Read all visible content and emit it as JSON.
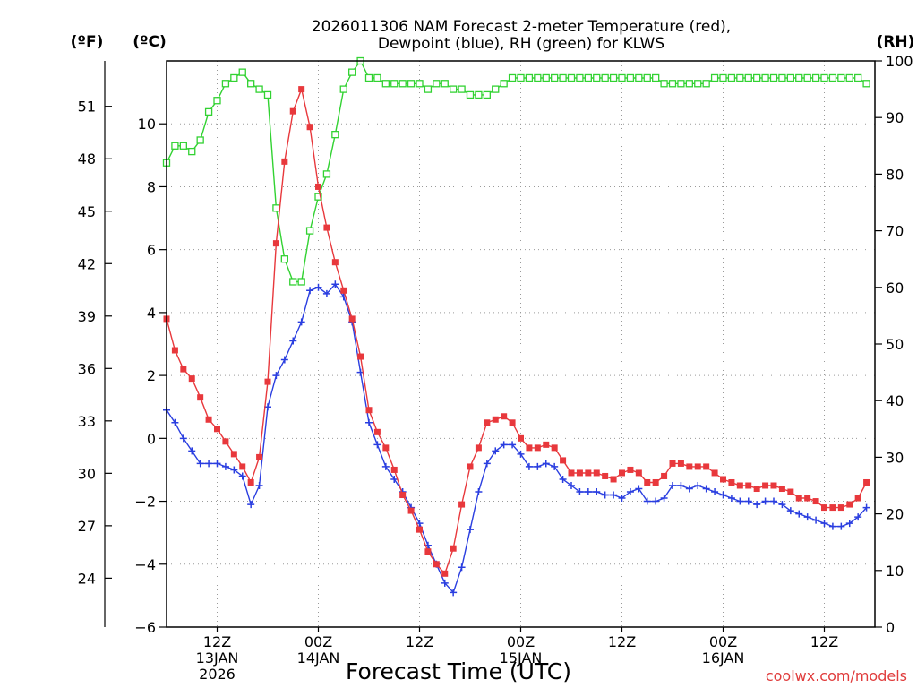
{
  "chart_data": {
    "type": "line",
    "title_lines": [
      "2026011306 NAM Forecast 2-meter Temperature (red),",
      "Dewpoint (blue), RH (green) for KLWS"
    ],
    "xlabel": "Forecast Time (UTC)",
    "credit": "coolwx.com/models",
    "units": {
      "fahrenheit": "(ºF)",
      "celsius": "(ºC)",
      "rh": "(RH)"
    },
    "x_hours_range": [
      0,
      84
    ],
    "x_ticks": [
      {
        "h": 6,
        "lines": [
          "12Z",
          "13JAN",
          "2026"
        ]
      },
      {
        "h": 18,
        "lines": [
          "00Z",
          "14JAN"
        ]
      },
      {
        "h": 30,
        "lines": [
          "12Z"
        ]
      },
      {
        "h": 42,
        "lines": [
          "00Z",
          "15JAN"
        ]
      },
      {
        "h": 54,
        "lines": [
          "12Z"
        ]
      },
      {
        "h": 66,
        "lines": [
          "00Z",
          "16JAN"
        ]
      },
      {
        "h": 78,
        "lines": [
          "12Z"
        ]
      }
    ],
    "y_celsius": {
      "range": [
        -6,
        12
      ],
      "ticks": [
        -6,
        -4,
        -2,
        0,
        2,
        4,
        6,
        8,
        10
      ],
      "tick_labels": [
        "−6",
        "−4",
        "−2",
        "0",
        "2",
        "4",
        "6",
        "8",
        "10"
      ]
    },
    "y_fahrenheit": {
      "ticks": [
        24,
        27,
        30,
        33,
        36,
        39,
        42,
        45,
        48,
        51
      ]
    },
    "y_rh": {
      "range": [
        0,
        100
      ],
      "ticks": [
        0,
        10,
        20,
        30,
        40,
        50,
        60,
        70,
        80,
        90,
        100
      ]
    },
    "series": [
      {
        "name": "Temperature",
        "axis": "celsius",
        "color": "#e8383c",
        "marker": "filled-square",
        "values": [
          3.8,
          2.8,
          2.2,
          1.9,
          1.3,
          0.6,
          0.3,
          -0.1,
          -0.5,
          -0.9,
          -1.4,
          -0.6,
          1.8,
          6.2,
          8.8,
          10.4,
          11.1,
          9.9,
          8.0,
          6.7,
          5.6,
          4.7,
          3.8,
          2.6,
          0.9,
          0.2,
          -0.3,
          -1.0,
          -1.8,
          -2.3,
          -2.9,
          -3.6,
          -4.0,
          -4.3,
          -3.5,
          -2.1,
          -0.9,
          -0.3,
          0.5,
          0.6,
          0.7,
          0.5,
          0.0,
          -0.3,
          -0.3,
          -0.2,
          -0.3,
          -0.7,
          -1.1,
          -1.1,
          -1.1,
          -1.1,
          -1.2,
          -1.3,
          -1.1,
          -1.0,
          -1.1,
          -1.4,
          -1.4,
          -1.2,
          -0.8,
          -0.8,
          -0.9,
          -0.9,
          -0.9,
          -1.1,
          -1.3,
          -1.4,
          -1.5,
          -1.5,
          -1.6,
          -1.5,
          -1.5,
          -1.6,
          -1.7,
          -1.9,
          -1.9,
          -2.0,
          -2.2,
          -2.2,
          -2.2,
          -2.1,
          -1.9,
          -1.4
        ]
      },
      {
        "name": "Dewpoint",
        "axis": "celsius",
        "color": "#2a3ee0",
        "marker": "plus",
        "values": [
          0.9,
          0.5,
          0.0,
          -0.4,
          -0.8,
          -0.8,
          -0.8,
          -0.9,
          -1.0,
          -1.2,
          -2.1,
          -1.5,
          1.0,
          2.0,
          2.5,
          3.1,
          3.7,
          4.7,
          4.8,
          4.6,
          4.9,
          4.5,
          3.7,
          2.1,
          0.5,
          -0.2,
          -0.9,
          -1.3,
          -1.7,
          -2.2,
          -2.7,
          -3.4,
          -4.0,
          -4.6,
          -4.9,
          -4.1,
          -2.9,
          -1.7,
          -0.8,
          -0.4,
          -0.2,
          -0.2,
          -0.5,
          -0.9,
          -0.9,
          -0.8,
          -0.9,
          -1.3,
          -1.5,
          -1.7,
          -1.7,
          -1.7,
          -1.8,
          -1.8,
          -1.9,
          -1.7,
          -1.6,
          -2.0,
          -2.0,
          -1.9,
          -1.5,
          -1.5,
          -1.6,
          -1.5,
          -1.6,
          -1.7,
          -1.8,
          -1.9,
          -2.0,
          -2.0,
          -2.1,
          -2.0,
          -2.0,
          -2.1,
          -2.3,
          -2.4,
          -2.5,
          -2.6,
          -2.7,
          -2.8,
          -2.8,
          -2.7,
          -2.5,
          -2.2
        ]
      },
      {
        "name": "RH",
        "axis": "rh",
        "color": "#32d232",
        "marker": "open-square",
        "values": [
          82,
          85,
          85,
          84,
          86,
          91,
          93,
          96,
          97,
          98,
          96,
          95,
          94,
          74,
          65,
          61,
          61,
          70,
          76,
          80,
          87,
          95,
          98,
          100,
          97,
          97,
          96,
          96,
          96,
          96,
          96,
          95,
          96,
          96,
          95,
          95,
          94,
          94,
          94,
          95,
          96,
          97,
          97,
          97,
          97,
          97,
          97,
          97,
          97,
          97,
          97,
          97,
          97,
          97,
          97,
          97,
          97,
          97,
          97,
          96,
          96,
          96,
          96,
          96,
          96,
          97,
          97,
          97,
          97,
          97,
          97,
          97,
          97,
          97,
          97,
          97,
          97,
          97,
          97,
          97,
          97,
          97,
          97,
          96
        ]
      }
    ]
  }
}
